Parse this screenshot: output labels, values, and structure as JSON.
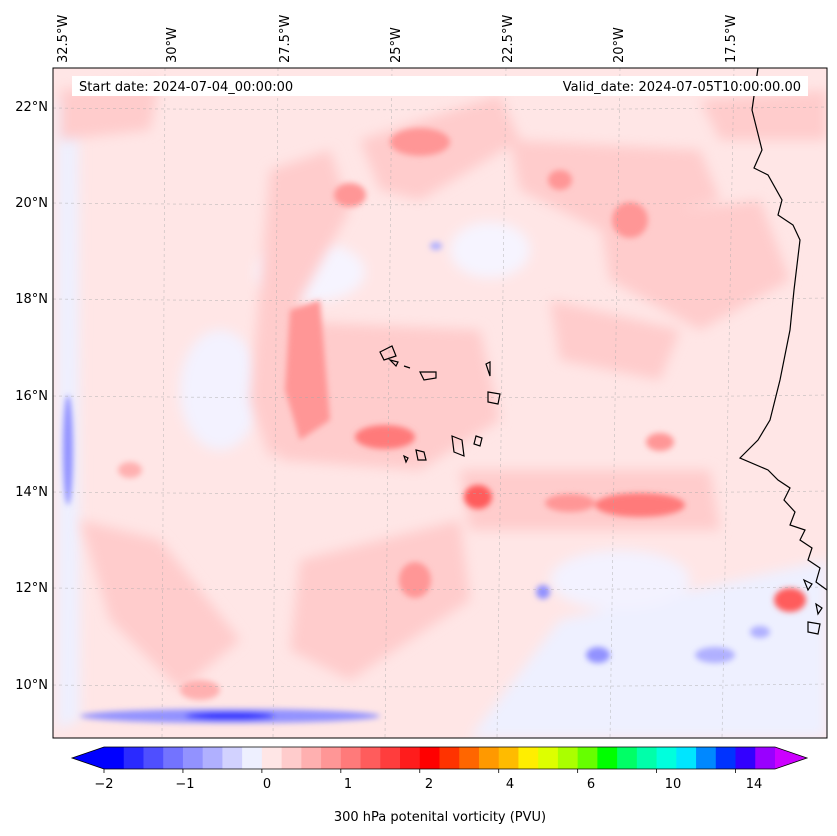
{
  "map": {
    "start_label": "Start date: 2024-07-04_00:00:00",
    "valid_label": "Valid_date: 2024-07-05T10:00:00.00",
    "field": "300 hPa potential vorticity",
    "region": "Cape Verde Islands and West African coast",
    "lon_ticks": [
      "32.5°W",
      "30°W",
      "27.5°W",
      "25°W",
      "22.5°W",
      "20°W",
      "17.5°W"
    ],
    "lat_ticks": [
      "22°N",
      "20°N",
      "18°N",
      "16°N",
      "14°N",
      "12°N",
      "10°N"
    ]
  },
  "colorbar": {
    "label": "300 hPa potenital vorticity (PVU)",
    "tick_labels": [
      "−2",
      "−1",
      "0",
      "1",
      "2",
      "4",
      "6",
      "10",
      "14"
    ],
    "colors": [
      "#0000ff",
      "#2a2aff",
      "#4f4fff",
      "#7373ff",
      "#9292ff",
      "#b0b0ff",
      "#d2d2ff",
      "#eef0ff",
      "#ffe6e6",
      "#ffcccc",
      "#ffb0b0",
      "#ff9696",
      "#ff7a7a",
      "#ff5c5c",
      "#ff3d3d",
      "#ff1c1c",
      "#ff0000",
      "#ff3300",
      "#ff6600",
      "#ff9900",
      "#ffbb00",
      "#ffee00",
      "#ddff00",
      "#aaff00",
      "#66ff00",
      "#00ff00",
      "#00ff66",
      "#00ffaa",
      "#00ffdd",
      "#00e5ff",
      "#0088ff",
      "#0033ff",
      "#3300ff",
      "#9900ff"
    ],
    "under_color": "#0000ff",
    "over_color": "#cc00ff"
  }
}
